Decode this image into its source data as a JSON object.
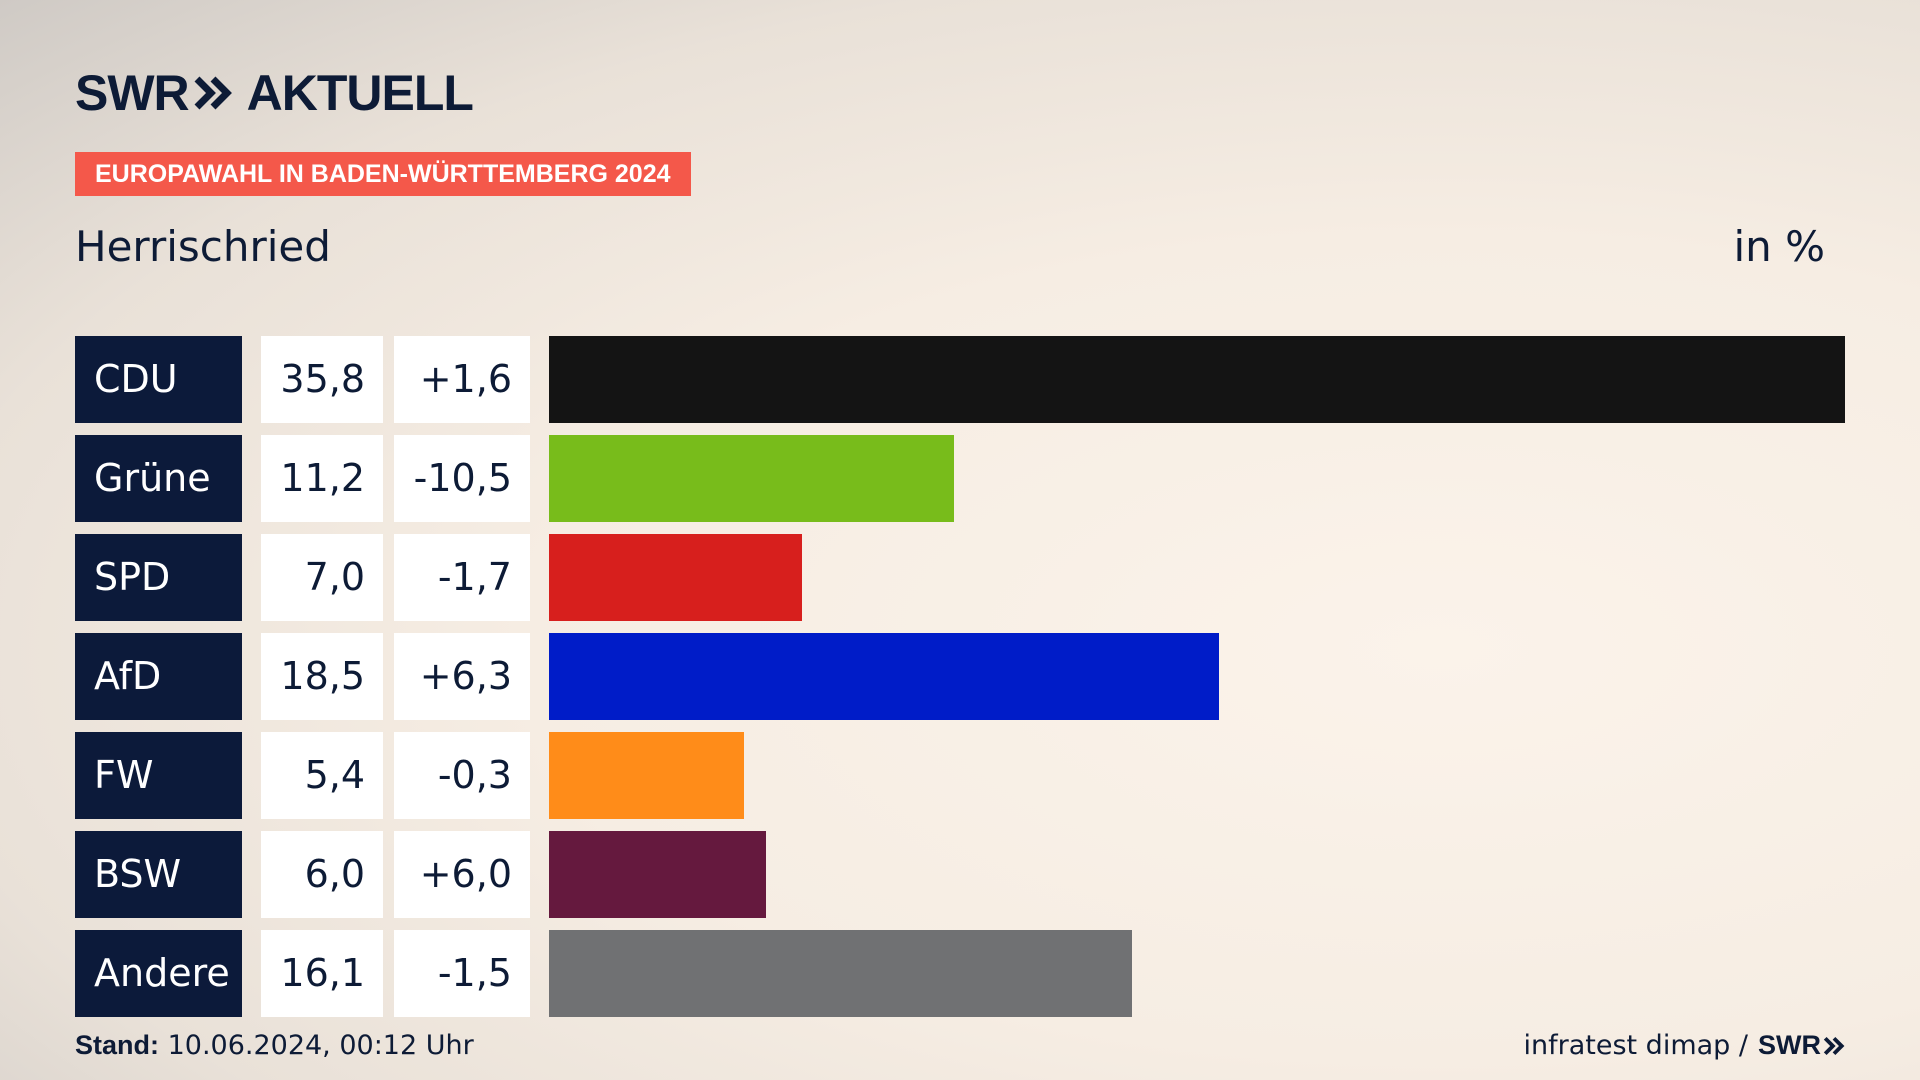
{
  "header": {
    "logo_swr": "SWR",
    "logo_aktuell": "AKTUELL",
    "badge": "EUROPAWAHL IN BADEN-WÜRTTEMBERG 2024",
    "location": "Herrischried",
    "unit": "in %"
  },
  "colors": {
    "CDU": "#141414",
    "Grüne": "#78bc1b",
    "SPD": "#d71f1d",
    "AfD": "#001cc8",
    "FW": "#ff8c19",
    "BSW": "#65193e",
    "Andere": "#707173",
    "badge": "#f4584a",
    "party_box": "#0c1a3a"
  },
  "chart_data": {
    "type": "bar",
    "orientation": "horizontal",
    "categories": [
      "CDU",
      "Grüne",
      "SPD",
      "AfD",
      "FW",
      "BSW",
      "Andere"
    ],
    "values": [
      35.8,
      11.2,
      7.0,
      18.5,
      5.4,
      6.0,
      16.1
    ],
    "value_labels": [
      "35,8",
      "11,2",
      "7,0",
      "18,5",
      "5,4",
      "6,0",
      "16,1"
    ],
    "diff_labels": [
      "+1,6",
      "-10,5",
      "-1,7",
      "+6,3",
      "-0,3",
      "+6,0",
      "-1,5"
    ],
    "xlim": [
      0,
      35.8
    ]
  },
  "footer": {
    "stand_label": "Stand:",
    "stand_value": "10.06.2024, 00:12 Uhr",
    "source": "infratest dimap /",
    "source_logo": "SWR"
  }
}
